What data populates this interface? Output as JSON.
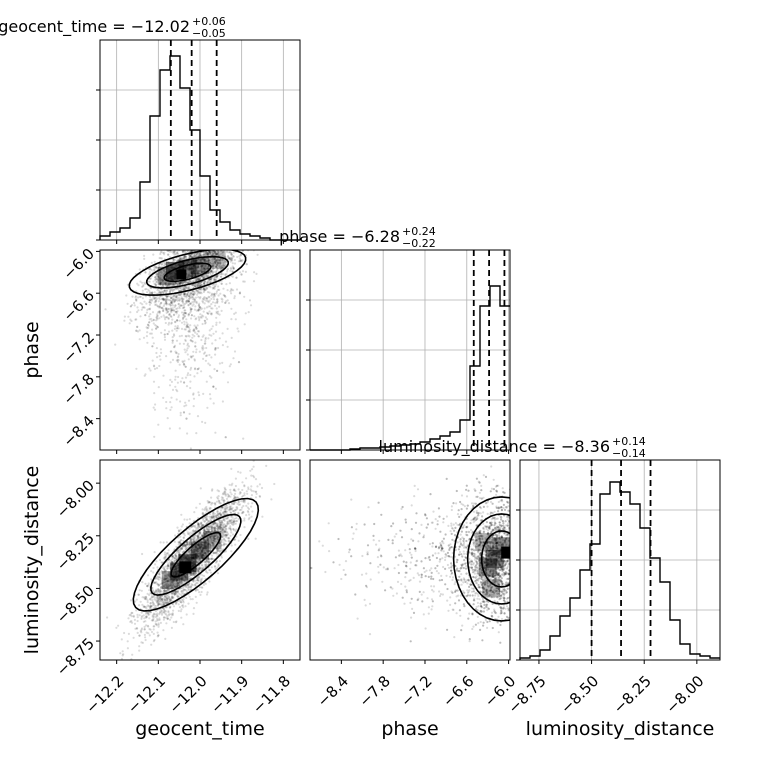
{
  "chart_data": {
    "type": "corner",
    "parameters": [
      "geocent_time",
      "phase",
      "luminosity_distance"
    ],
    "titles": [
      {
        "label": "geocent_time = −12.02",
        "plus": "+0.06",
        "minus": "−0.05"
      },
      {
        "label": "phase = −6.28",
        "plus": "+0.24",
        "minus": "−0.22"
      },
      {
        "label": "luminosity_distance = −8.36",
        "plus": "+0.14",
        "minus": "−0.14"
      }
    ],
    "ranges": {
      "geocent_time": [
        -12.24,
        -11.76
      ],
      "phase": [
        -8.85,
        -5.98
      ],
      "luminosity_distance": [
        -8.84,
        -7.89
      ]
    },
    "ticks": {
      "geocent_time": [
        -12.2,
        -12.1,
        -12.0,
        -11.9,
        -11.8
      ],
      "phase": [
        -8.4,
        -7.8,
        -7.2,
        -6.6,
        -6.0
      ],
      "luminosity_distance": [
        -8.75,
        -8.5,
        -8.25,
        -8.0
      ]
    },
    "tick_labels": {
      "geocent_time": [
        "−12.2",
        "−12.1",
        "−12.0",
        "−11.9",
        "−11.8"
      ],
      "phase": [
        "−8.4",
        "−7.8",
        "−7.2",
        "−6.6",
        "−6.0"
      ],
      "luminosity_distance": [
        "−8.75",
        "−8.50",
        "−8.25",
        "−8.00"
      ]
    },
    "quantiles": {
      "geocent_time": [
        -12.07,
        -12.02,
        -11.96
      ],
      "phase": [
        -6.5,
        -6.28,
        -6.06
      ],
      "luminosity_distance": [
        -8.5,
        -8.36,
        -8.22
      ]
    },
    "histograms": {
      "geocent_time": {
        "edges_range": [
          -12.24,
          -11.76
        ],
        "counts": [
          0.02,
          0.04,
          0.06,
          0.11,
          0.29,
          0.62,
          0.85,
          0.92,
          0.76,
          0.55,
          0.32,
          0.15,
          0.09,
          0.05,
          0.03,
          0.02,
          0.01,
          0,
          0,
          0
        ]
      },
      "phase": {
        "edges_range": [
          -8.85,
          -5.98
        ],
        "counts": [
          0,
          0,
          0,
          0,
          0.005,
          0.01,
          0.01,
          0.015,
          0.02,
          0.025,
          0.03,
          0.04,
          0.055,
          0.07,
          0.09,
          0.15,
          0.42,
          0.72,
          0.82,
          0.72
        ]
      },
      "luminosity_distance": {
        "edges_range": [
          -8.84,
          -7.89
        ],
        "counts": [
          0.01,
          0.02,
          0.05,
          0.12,
          0.22,
          0.31,
          0.45,
          0.58,
          0.83,
          0.89,
          0.84,
          0.78,
          0.66,
          0.51,
          0.39,
          0.2,
          0.08,
          0.03,
          0.02,
          0.01
        ]
      }
    },
    "grid": true
  }
}
